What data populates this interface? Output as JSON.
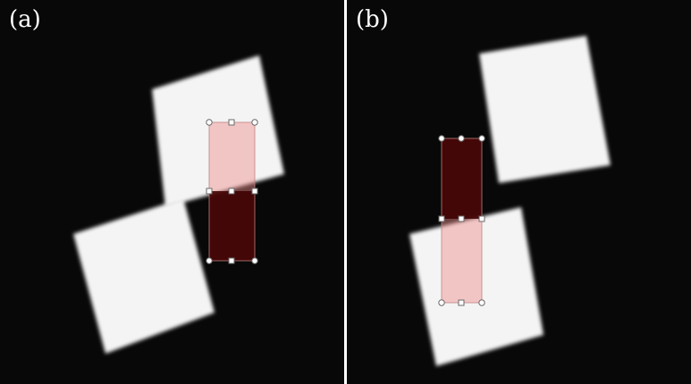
{
  "panels": [
    {
      "id": "a",
      "label": "(a)"
    },
    {
      "id": "b",
      "label": "(b)"
    }
  ],
  "colors": {
    "background": "#080808",
    "object": "#f4f4f4",
    "edge_shadow": "#6a6a6a",
    "overlay_light": "#f2a0a0",
    "overlay_dark": "#5a0a0a",
    "handle_stroke": "#6a6a6a",
    "handle_fill": "#ffffff"
  }
}
